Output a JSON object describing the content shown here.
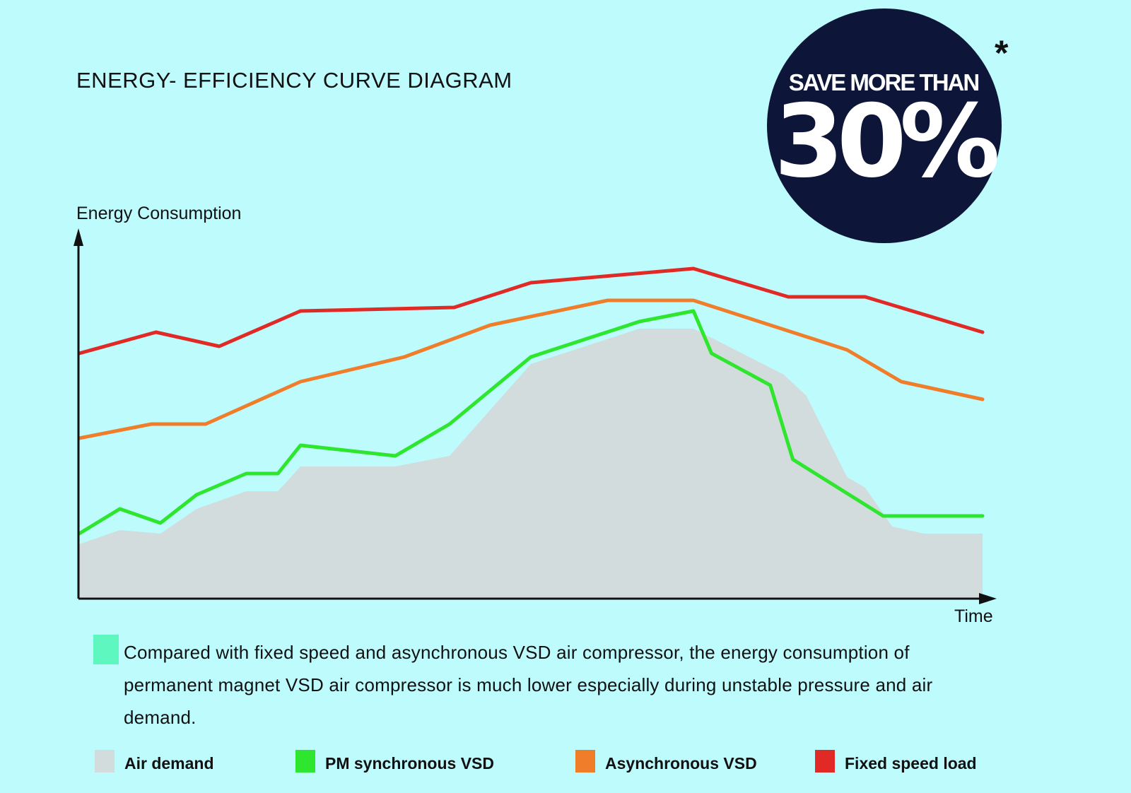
{
  "title": "ENERGY- EFFICIENCY CURVE DIAGRAM",
  "badge": {
    "line1": "SAVE MORE THAN",
    "value": "30%",
    "asterisk": "*",
    "color": "#0d1638"
  },
  "note": {
    "text": "Compared with fixed speed and asynchronous VSD air compressor, the energy consumption of permanent magnet VSD air compressor is much lower especially during unstable pressure and air demand.",
    "swatch_color": "#5ff7c0"
  },
  "chart_data": {
    "type": "line",
    "ylabel": "Energy Consumption",
    "xlabel": "Time",
    "xlim": [
      0,
      100
    ],
    "ylim": [
      0,
      100
    ],
    "grid": false,
    "legend_placement": "bottom",
    "series": [
      {
        "name": "Air demand",
        "render": "area",
        "color": "#d3dcdc",
        "x": [
          0,
          4.5,
          9,
          13,
          18.5,
          22,
          24.5,
          35,
          41,
          50,
          62,
          68,
          78,
          80.5,
          85,
          87,
          90,
          93.5,
          100
        ],
        "y": [
          15,
          19,
          18,
          25,
          30,
          30,
          37,
          37,
          40,
          66,
          76,
          76,
          63,
          57,
          34,
          31,
          20,
          18,
          18
        ]
      },
      {
        "name": "PM synchronous VSD",
        "color": "#2ee62e",
        "x": [
          0,
          4.5,
          9,
          13,
          18.5,
          22,
          24.5,
          35,
          41,
          50,
          62,
          68,
          70,
          76.5,
          79,
          89,
          100
        ],
        "y": [
          18,
          25,
          21,
          29,
          35,
          35,
          43,
          40,
          49,
          68,
          78,
          81,
          69,
          60,
          39,
          23,
          23
        ]
      },
      {
        "name": "Asynchronous VSD",
        "color": "#f07d2a",
        "x": [
          0,
          8,
          14,
          24.5,
          36,
          45.5,
          58.5,
          68,
          85,
          91,
          100
        ],
        "y": [
          45,
          49,
          49,
          61,
          68,
          77,
          84,
          84,
          70,
          61,
          56
        ]
      },
      {
        "name": "Fixed speed load",
        "color": "#e12a26",
        "x": [
          0,
          8.5,
          15.5,
          24.5,
          41.5,
          50,
          68,
          78.5,
          87,
          100
        ],
        "y": [
          69,
          75,
          71,
          81,
          82,
          89,
          93,
          85,
          85,
          75
        ]
      }
    ]
  }
}
